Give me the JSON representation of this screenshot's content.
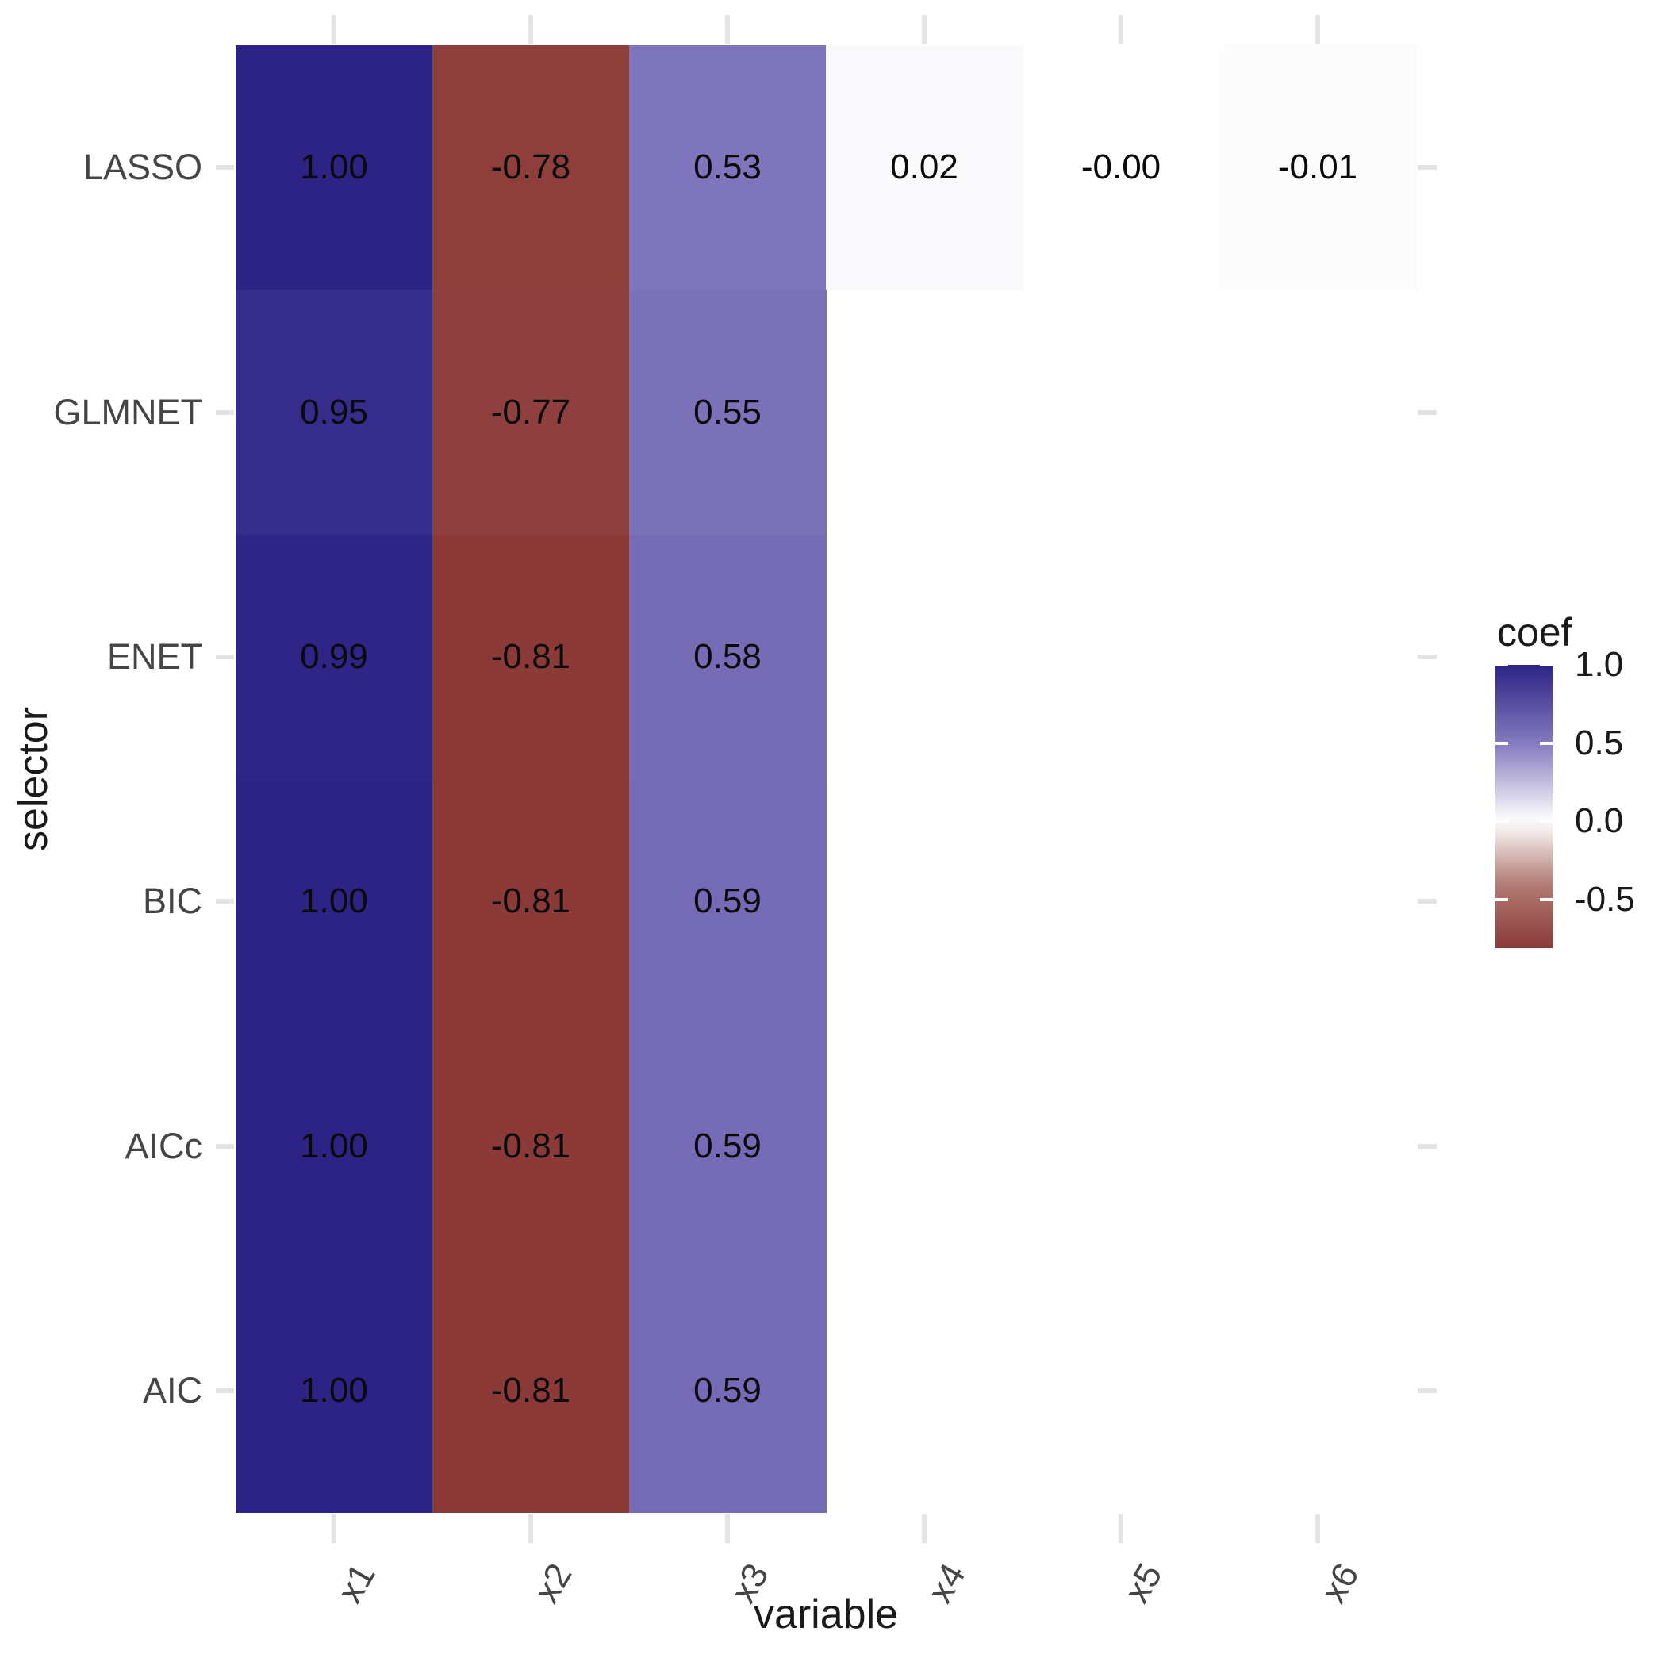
{
  "page": {
    "background": "#ffffff"
  },
  "chart_data": {
    "type": "heatmap",
    "title": "",
    "xlabel": "variable",
    "ylabel": "selector",
    "x_categories": [
      "x1",
      "x2",
      "x3",
      "x4",
      "x5",
      "x6"
    ],
    "y_categories": [
      "LASSO",
      "GLMNET",
      "ENET",
      "BIC",
      "AICc",
      "AIC"
    ],
    "series": [
      {
        "name": "LASSO",
        "values": [
          1.0,
          -0.78,
          0.53,
          0.02,
          -0.0,
          -0.01
        ],
        "labels": [
          "1.00",
          "-0.78",
          "0.53",
          "0.02",
          "-0.00",
          "-0.01"
        ]
      },
      {
        "name": "GLMNET",
        "values": [
          0.95,
          -0.77,
          0.55,
          null,
          null,
          null
        ],
        "labels": [
          "0.95",
          "-0.77",
          "0.55",
          null,
          null,
          null
        ]
      },
      {
        "name": "ENET",
        "values": [
          0.99,
          -0.81,
          0.58,
          null,
          null,
          null
        ],
        "labels": [
          "0.99",
          "-0.81",
          "0.58",
          null,
          null,
          null
        ]
      },
      {
        "name": "BIC",
        "values": [
          1.0,
          -0.81,
          0.59,
          null,
          null,
          null
        ],
        "labels": [
          "1.00",
          "-0.81",
          "0.59",
          null,
          null,
          null
        ]
      },
      {
        "name": "AICc",
        "values": [
          1.0,
          -0.81,
          0.59,
          null,
          null,
          null
        ],
        "labels": [
          "1.00",
          "-0.81",
          "0.59",
          null,
          null,
          null
        ]
      },
      {
        "name": "AIC",
        "values": [
          1.0,
          -0.81,
          0.59,
          null,
          null,
          null
        ],
        "labels": [
          "1.00",
          "-0.81",
          "0.59",
          null,
          null,
          null
        ]
      }
    ],
    "legend": {
      "title": "coef",
      "position": "right",
      "tick_labels": [
        "1.0",
        "0.5",
        "0.0",
        "-0.5"
      ],
      "tick_values": [
        1.0,
        0.5,
        0.0,
        -0.5
      ],
      "domain_top": 1.0,
      "domain_bottom": -0.81
    },
    "x_axis": {
      "tick_angle_deg": 60
    },
    "grid": false,
    "colors": {
      "high": "#2d2385",
      "mid_pos": "#847abf",
      "zero": "#ffffff",
      "mid_neg": "#b27c74",
      "low": "#8b3a38",
      "mid_pos_value": 0.5,
      "mid_neg_value": -0.4,
      "axis_text": "#454545",
      "axis_title": "#1a1a1a",
      "value_text": "#0a0a0a",
      "tick_mark": "#e3e3e3"
    }
  }
}
